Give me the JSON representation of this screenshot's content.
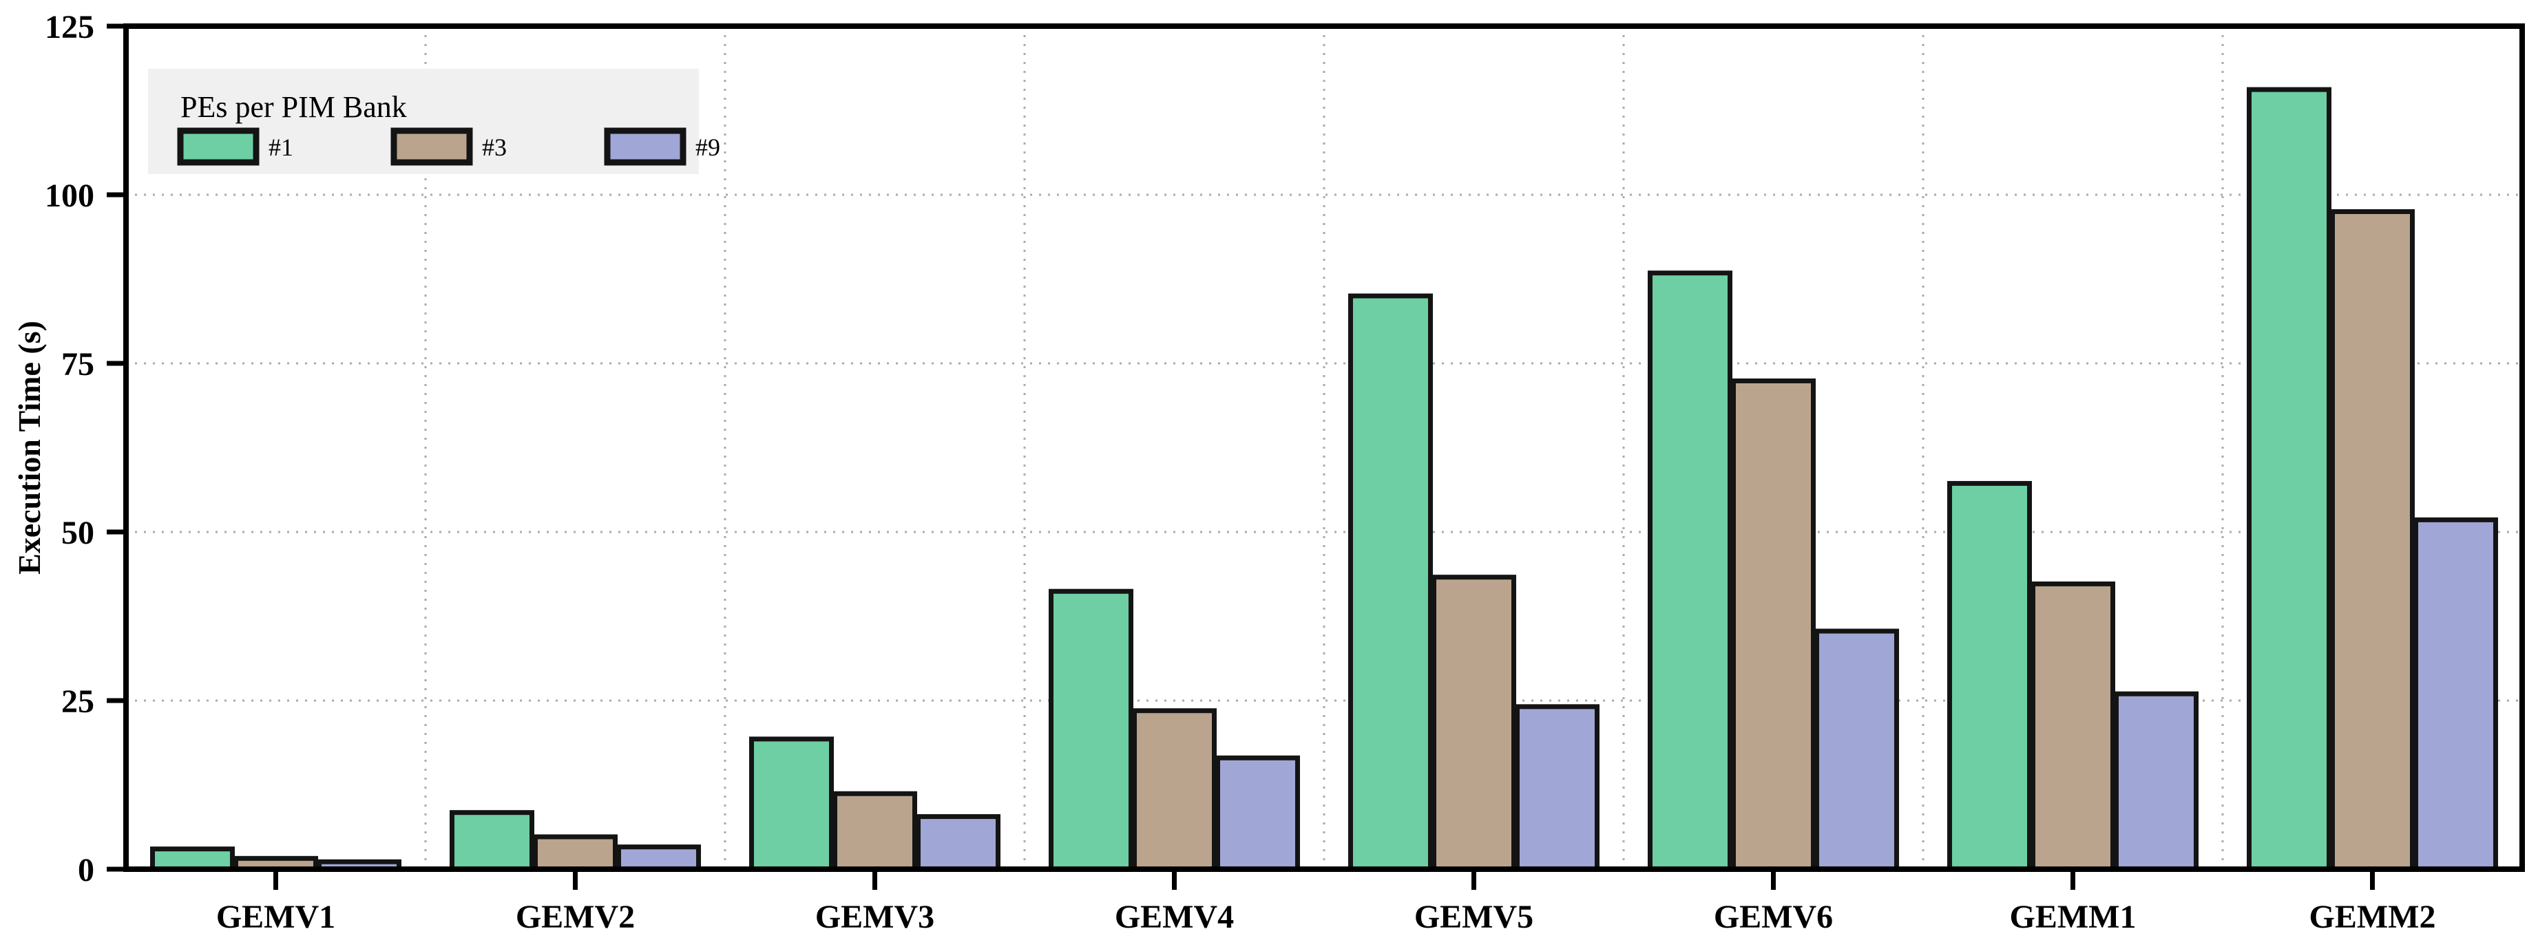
{
  "chart_data": {
    "type": "bar",
    "title": "",
    "xlabel": "",
    "ylabel": "Execution Time (s)",
    "categories": [
      "GEMV1",
      "GEMV2",
      "GEMV3",
      "GEMV4",
      "GEMV5",
      "GEMV6",
      "GEMM1",
      "GEMM2"
    ],
    "series": [
      {
        "name": "#1",
        "color": "#6dcfa3",
        "values": [
          3.0,
          8.4,
          19.3,
          41.2,
          85.0,
          88.4,
          57.2,
          115.6
        ]
      },
      {
        "name": "#3",
        "color": "#bba48e",
        "values": [
          1.6,
          4.8,
          11.2,
          23.5,
          43.3,
          72.4,
          42.3,
          97.5
        ]
      },
      {
        "name": "#9",
        "color": "#a0a6d5",
        "values": [
          1.1,
          3.3,
          7.8,
          16.5,
          24.1,
          35.3,
          26.0,
          51.8
        ]
      }
    ],
    "ylim": [
      0,
      125
    ],
    "yticks": [
      0,
      25,
      50,
      75,
      100,
      125
    ],
    "grid": {
      "horizontal": true,
      "vertical_between_groups": true,
      "style": "dotted",
      "color": "#aaaaaa"
    },
    "legend": {
      "title": "PEs per PIM Bank",
      "position": "upper-left",
      "background": "#f0f0f0"
    },
    "bar_edge_color": "#141414",
    "axis_color": "#000000"
  }
}
